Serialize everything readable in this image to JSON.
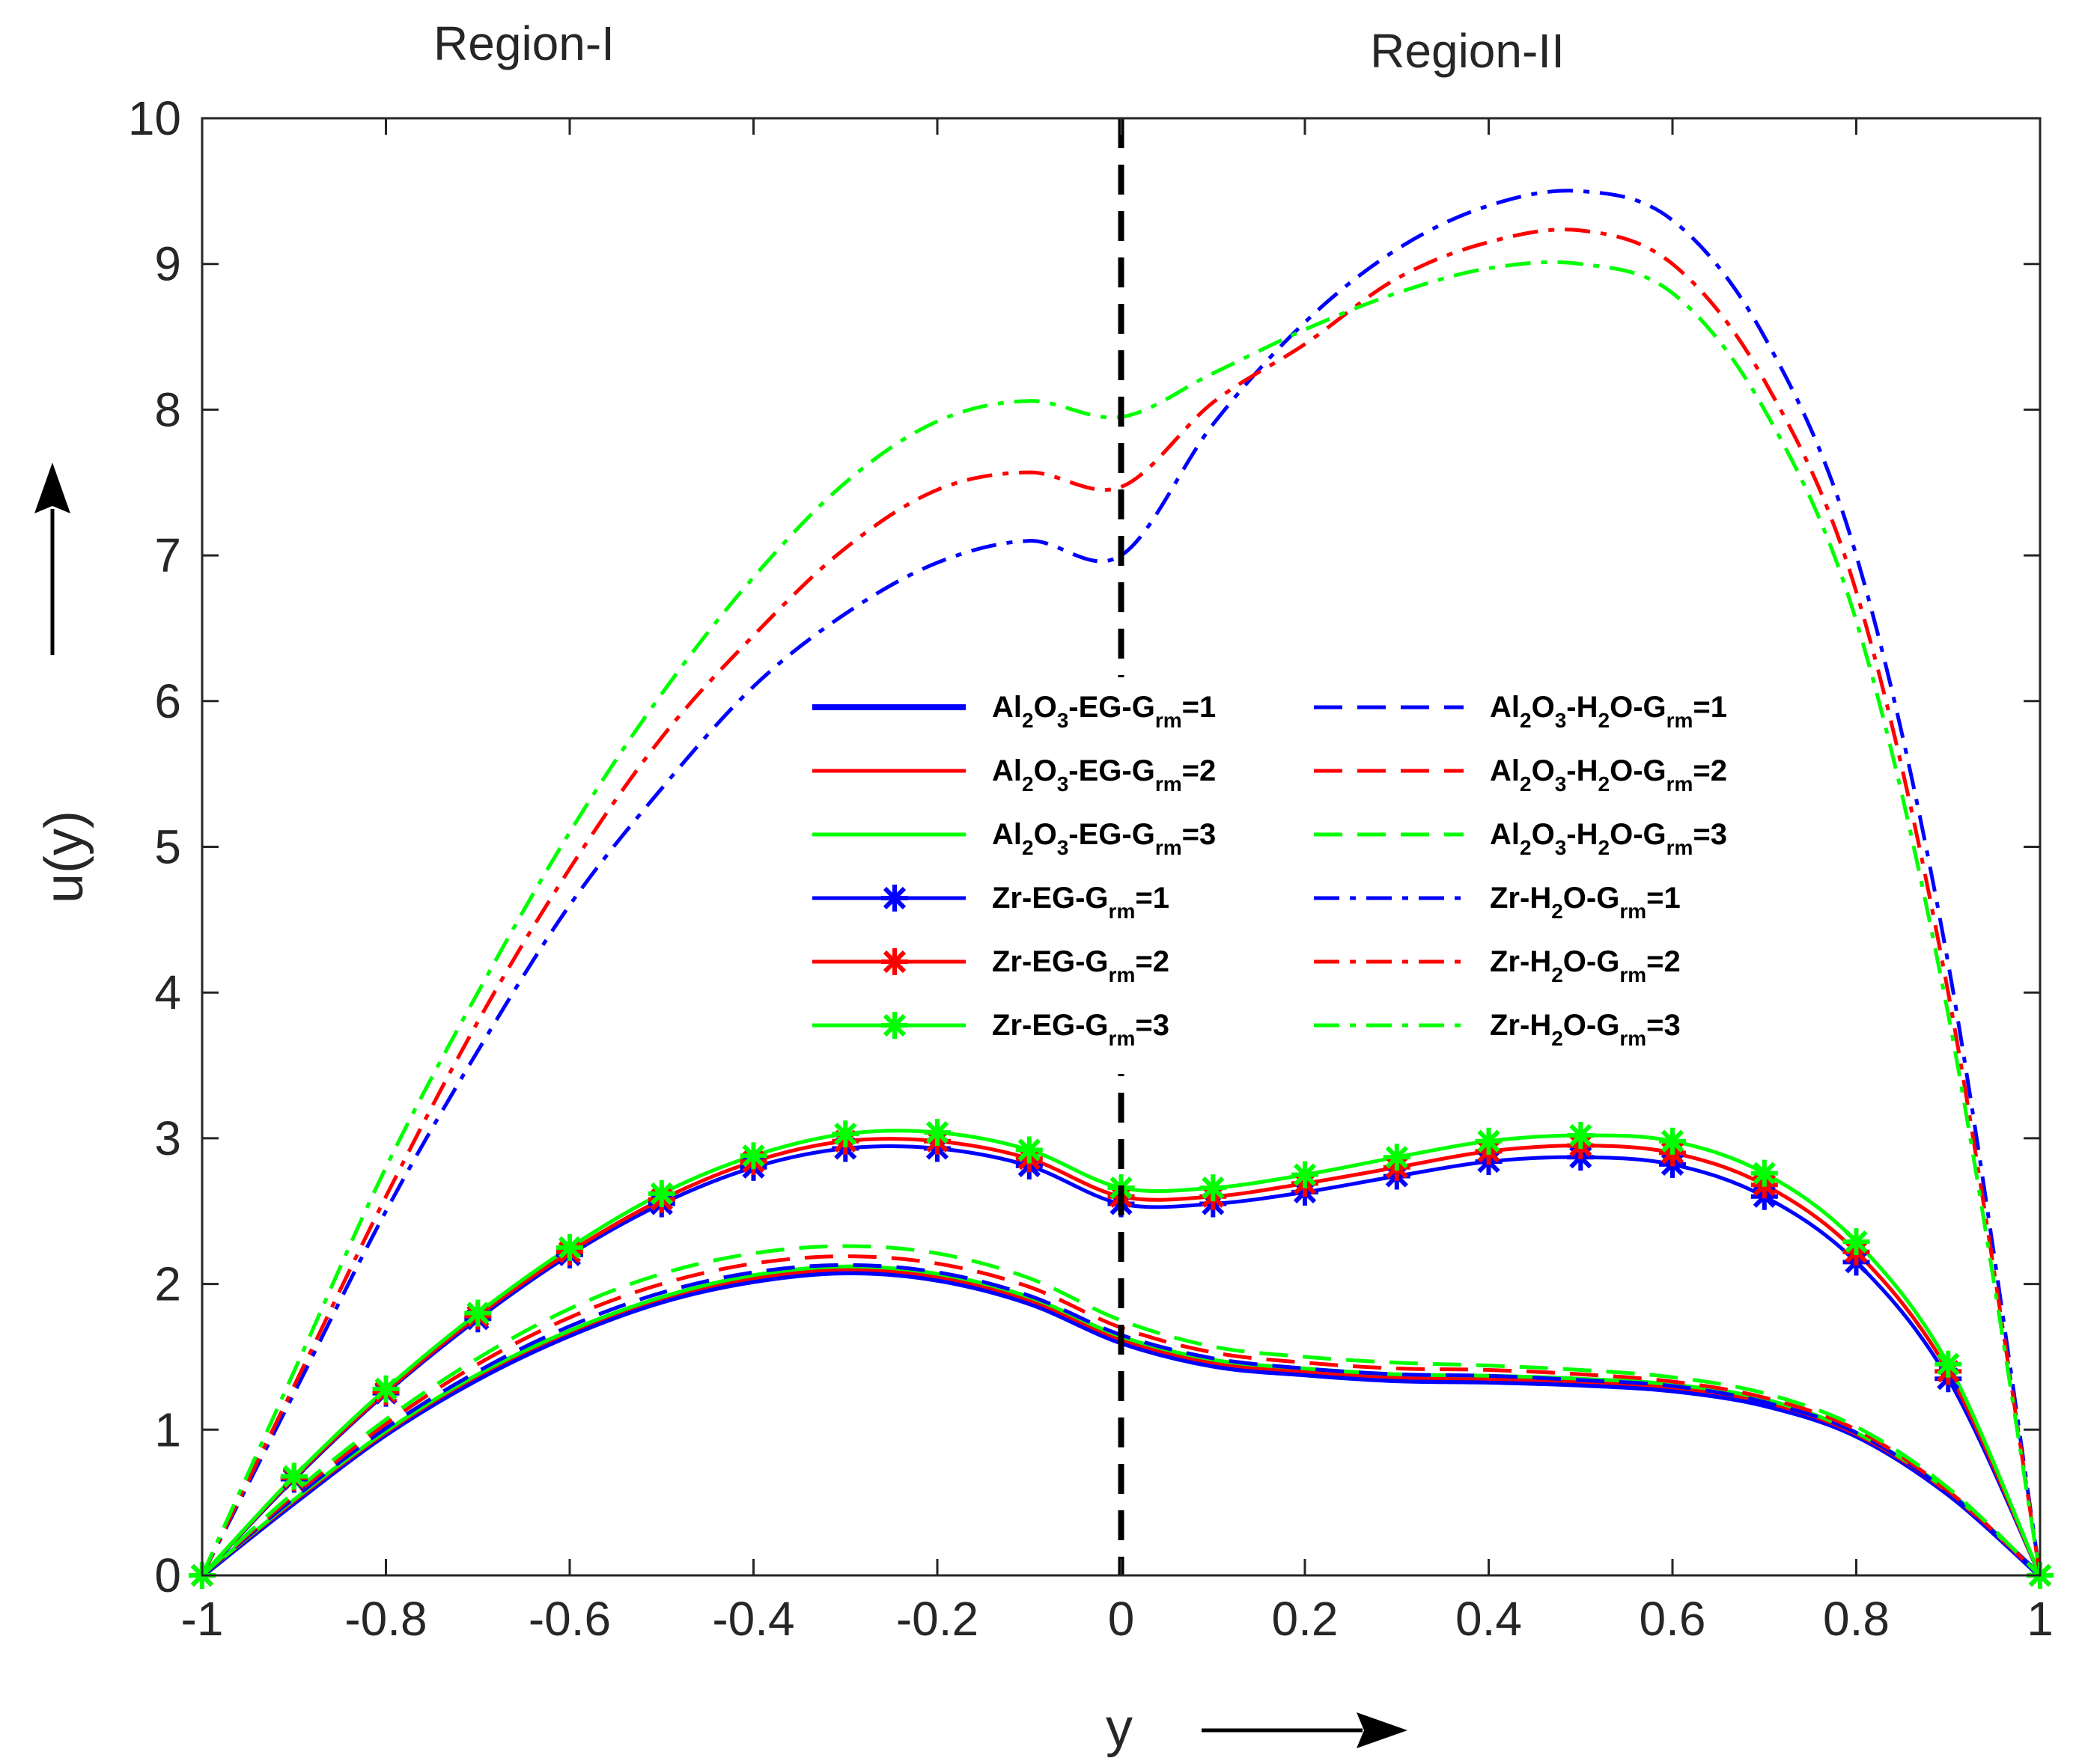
{
  "chart_data": {
    "type": "line",
    "title": "",
    "xlabel": "y",
    "ylabel": "u(y)",
    "xlim": [
      -1,
      1
    ],
    "ylim": [
      0,
      10
    ],
    "xticks": [
      "-1",
      "-0.8",
      "-0.6",
      "-0.4",
      "-0.2",
      "0",
      "0.2",
      "0.4",
      "0.6",
      "0.8",
      "1"
    ],
    "yticks": [
      "0",
      "1",
      "2",
      "3",
      "4",
      "5",
      "6",
      "7",
      "8",
      "9",
      "10"
    ],
    "regions": [
      "Region-I",
      "Region-II"
    ],
    "interface_x": 0,
    "legend_location": "center",
    "series": [
      {
        "name": "Al2O3-EG-Grm=1",
        "label": {
          "a": "Al",
          "a_sub": "2",
          "b": "O",
          "b_sub": "3",
          "c": "-EG-G",
          "c_sub": "rm",
          "d": "=1"
        },
        "color": "#0000ff",
        "style": "solid",
        "marker": "none",
        "x": [
          -1,
          -0.9,
          -0.8,
          -0.7,
          -0.6,
          -0.5,
          -0.4,
          -0.3,
          -0.2,
          -0.1,
          0,
          0.1,
          0.2,
          0.3,
          0.4,
          0.5,
          0.6,
          0.7,
          0.8,
          0.9,
          1
        ],
        "y": [
          0,
          0.5,
          0.97,
          1.35,
          1.65,
          1.88,
          2.02,
          2.08,
          2.03,
          1.87,
          1.6,
          1.44,
          1.38,
          1.34,
          1.33,
          1.31,
          1.27,
          1.17,
          0.96,
          0.56,
          0
        ]
      },
      {
        "name": "Al2O3-EG-Grm=2",
        "label": {
          "a": "Al",
          "a_sub": "2",
          "b": "O",
          "b_sub": "3",
          "c": "-EG-G",
          "c_sub": "rm",
          "d": "=2"
        },
        "color": "#ff0000",
        "style": "solid",
        "marker": "none",
        "x": [
          -1,
          -0.9,
          -0.8,
          -0.7,
          -0.6,
          -0.5,
          -0.4,
          -0.3,
          -0.2,
          -0.1,
          0,
          0.1,
          0.2,
          0.3,
          0.4,
          0.5,
          0.6,
          0.7,
          0.8,
          0.9,
          1
        ],
        "y": [
          0,
          0.51,
          0.98,
          1.37,
          1.67,
          1.9,
          2.04,
          2.1,
          2.05,
          1.89,
          1.62,
          1.46,
          1.4,
          1.36,
          1.35,
          1.33,
          1.29,
          1.19,
          0.97,
          0.57,
          0
        ]
      },
      {
        "name": "Al2O3-EG-Grm=3",
        "label": {
          "a": "Al",
          "a_sub": "2",
          "b": "O",
          "b_sub": "3",
          "c": "-EG-G",
          "c_sub": "rm",
          "d": "=3"
        },
        "color": "#00ff00",
        "style": "solid",
        "marker": "none",
        "x": [
          -1,
          -0.9,
          -0.8,
          -0.7,
          -0.6,
          -0.5,
          -0.4,
          -0.3,
          -0.2,
          -0.1,
          0,
          0.1,
          0.2,
          0.3,
          0.4,
          0.5,
          0.6,
          0.7,
          0.8,
          0.9,
          1
        ],
        "y": [
          0,
          0.52,
          0.99,
          1.38,
          1.68,
          1.91,
          2.06,
          2.12,
          2.07,
          1.91,
          1.64,
          1.48,
          1.42,
          1.38,
          1.37,
          1.35,
          1.31,
          1.21,
          0.98,
          0.58,
          0
        ]
      },
      {
        "name": "Zr-EG-Grm=1",
        "label": {
          "a": "Zr-EG-G",
          "a_sub": "",
          "b": "",
          "b_sub": "",
          "c": "",
          "c_sub": "rm",
          "d": "=1"
        },
        "color": "#0000ff",
        "style": "solid",
        "marker": "asterisk",
        "x": [
          -1,
          -0.9,
          -0.8,
          -0.7,
          -0.6,
          -0.5,
          -0.4,
          -0.3,
          -0.2,
          -0.1,
          0,
          0.1,
          0.2,
          0.3,
          0.4,
          0.5,
          0.6,
          0.7,
          0.8,
          0.9,
          1
        ],
        "y": [
          0,
          0.66,
          1.25,
          1.76,
          2.2,
          2.55,
          2.8,
          2.93,
          2.93,
          2.81,
          2.55,
          2.55,
          2.63,
          2.74,
          2.84,
          2.87,
          2.82,
          2.6,
          2.15,
          1.35,
          0
        ]
      },
      {
        "name": "Zr-EG-Grm=2",
        "label": {
          "a": "Zr-EG-G",
          "a_sub": "",
          "b": "",
          "b_sub": "",
          "c": "",
          "c_sub": "rm",
          "d": "=2"
        },
        "color": "#ff0000",
        "style": "solid",
        "marker": "asterisk",
        "x": [
          -1,
          -0.9,
          -0.8,
          -0.7,
          -0.6,
          -0.5,
          -0.4,
          -0.3,
          -0.2,
          -0.1,
          0,
          0.1,
          0.2,
          0.3,
          0.4,
          0.5,
          0.6,
          0.7,
          0.8,
          0.9,
          1
        ],
        "y": [
          0,
          0.67,
          1.26,
          1.78,
          2.22,
          2.58,
          2.84,
          2.98,
          2.98,
          2.86,
          2.6,
          2.6,
          2.69,
          2.8,
          2.91,
          2.95,
          2.9,
          2.68,
          2.22,
          1.4,
          0
        ]
      },
      {
        "name": "Zr-EG-Grm=3",
        "label": {
          "a": "Zr-EG-G",
          "a_sub": "",
          "b": "",
          "b_sub": "",
          "c": "",
          "c_sub": "rm",
          "d": "=3"
        },
        "color": "#00ff00",
        "style": "solid",
        "marker": "asterisk",
        "x": [
          -1,
          -0.9,
          -0.8,
          -0.7,
          -0.6,
          -0.5,
          -0.4,
          -0.3,
          -0.2,
          -0.1,
          0,
          0.1,
          0.2,
          0.3,
          0.4,
          0.5,
          0.6,
          0.7,
          0.8,
          0.9,
          1
        ],
        "y": [
          0,
          0.68,
          1.28,
          1.8,
          2.25,
          2.62,
          2.88,
          3.03,
          3.04,
          2.92,
          2.66,
          2.66,
          2.75,
          2.87,
          2.98,
          3.02,
          2.98,
          2.76,
          2.29,
          1.45,
          0
        ]
      },
      {
        "name": "Al2O3-H2O-Grm=1",
        "label": {
          "a": "Al",
          "a_sub": "2",
          "b": "O",
          "b_sub": "3",
          "c": "-H",
          "c_sub": "2",
          "d": "O-G",
          "d_sub": "rm",
          "e": "=1"
        },
        "color": "#0000ff",
        "style": "dashed",
        "marker": "none",
        "x": [
          -1,
          -0.9,
          -0.8,
          -0.7,
          -0.6,
          -0.5,
          -0.4,
          -0.3,
          -0.2,
          -0.1,
          0,
          0.1,
          0.2,
          0.3,
          0.4,
          0.5,
          0.6,
          0.7,
          0.8,
          0.9,
          1
        ],
        "y": [
          0,
          0.53,
          1.01,
          1.4,
          1.71,
          1.94,
          2.08,
          2.13,
          2.08,
          1.92,
          1.65,
          1.49,
          1.42,
          1.38,
          1.37,
          1.34,
          1.3,
          1.19,
          0.98,
          0.57,
          0
        ]
      },
      {
        "name": "Al2O3-H2O-Grm=2",
        "label": {
          "a": "Al",
          "a_sub": "2",
          "b": "O",
          "b_sub": "3",
          "c": "-H",
          "c_sub": "2",
          "d": "O-G",
          "d_sub": "rm",
          "e": "=2"
        },
        "color": "#ff0000",
        "style": "dashed",
        "marker": "none",
        "x": [
          -1,
          -0.9,
          -0.8,
          -0.7,
          -0.6,
          -0.5,
          -0.4,
          -0.3,
          -0.2,
          -0.1,
          0,
          0.1,
          0.2,
          0.3,
          0.4,
          0.5,
          0.6,
          0.7,
          0.8,
          0.9,
          1
        ],
        "y": [
          0,
          0.55,
          1.04,
          1.45,
          1.77,
          2.0,
          2.14,
          2.19,
          2.14,
          1.98,
          1.7,
          1.53,
          1.46,
          1.42,
          1.41,
          1.38,
          1.33,
          1.22,
          1.0,
          0.58,
          0
        ]
      },
      {
        "name": "Al2O3-H2O-Grm=3",
        "label": {
          "a": "Al",
          "a_sub": "2",
          "b": "O",
          "b_sub": "3",
          "c": "-H",
          "c_sub": "2",
          "d": "O-G",
          "d_sub": "rm",
          "e": "=3"
        },
        "color": "#00ff00",
        "style": "dashed",
        "marker": "none",
        "x": [
          -1,
          -0.9,
          -0.8,
          -0.7,
          -0.6,
          -0.5,
          -0.4,
          -0.3,
          -0.2,
          -0.1,
          0,
          0.1,
          0.2,
          0.3,
          0.4,
          0.5,
          0.6,
          0.7,
          0.8,
          0.9,
          1
        ],
        "y": [
          0,
          0.57,
          1.07,
          1.49,
          1.83,
          2.07,
          2.21,
          2.26,
          2.21,
          2.04,
          1.75,
          1.57,
          1.5,
          1.46,
          1.44,
          1.41,
          1.36,
          1.25,
          1.02,
          0.6,
          0
        ]
      },
      {
        "name": "Zr-H2O-Grm=1",
        "label": {
          "a": "Zr-H",
          "a_sub": "2",
          "b": "O-G",
          "b_sub": "rm",
          "c": "=1",
          "c_sub": "",
          "d": ""
        },
        "color": "#0000ff",
        "style": "dashdot",
        "marker": "none",
        "x": [
          -1,
          -0.9,
          -0.8,
          -0.7,
          -0.6,
          -0.5,
          -0.4,
          -0.3,
          -0.2,
          -0.1,
          0,
          0.1,
          0.2,
          0.3,
          0.4,
          0.5,
          0.6,
          0.7,
          0.8,
          0.9,
          1
        ],
        "y": [
          0,
          1.25,
          2.5,
          3.6,
          4.6,
          5.4,
          6.1,
          6.6,
          6.95,
          7.1,
          7.0,
          7.9,
          8.6,
          9.1,
          9.4,
          9.5,
          9.3,
          8.5,
          7.0,
          4.2,
          0
        ]
      },
      {
        "name": "Zr-H2O-Grm=2",
        "label": {
          "a": "Zr-H",
          "a_sub": "2",
          "b": "O-G",
          "b_sub": "rm",
          "c": "=2",
          "c_sub": "",
          "d": ""
        },
        "color": "#ff0000",
        "style": "dashdot",
        "marker": "none",
        "x": [
          -1,
          -0.9,
          -0.8,
          -0.7,
          -0.6,
          -0.5,
          -0.4,
          -0.3,
          -0.2,
          -0.1,
          0,
          0.1,
          0.2,
          0.3,
          0.4,
          0.5,
          0.6,
          0.7,
          0.8,
          0.9,
          1
        ],
        "y": [
          0,
          1.3,
          2.6,
          3.8,
          4.85,
          5.75,
          6.45,
          7.05,
          7.45,
          7.57,
          7.47,
          8.05,
          8.45,
          8.9,
          9.15,
          9.23,
          9.0,
          8.2,
          6.75,
          4.0,
          0
        ]
      },
      {
        "name": "Zr-H2O-Grm=3",
        "label": {
          "a": "Zr-H",
          "a_sub": "2",
          "b": "O-G",
          "b_sub": "rm",
          "c": "=3",
          "c_sub": "",
          "d": ""
        },
        "color": "#00ff00",
        "style": "dashdot",
        "marker": "none",
        "x": [
          -1,
          -0.9,
          -0.8,
          -0.7,
          -0.6,
          -0.5,
          -0.4,
          -0.3,
          -0.2,
          -0.1,
          0,
          0.1,
          0.2,
          0.3,
          0.4,
          0.5,
          0.6,
          0.7,
          0.8,
          0.9,
          1
        ],
        "y": [
          0,
          1.4,
          2.8,
          4.0,
          5.1,
          6.05,
          6.85,
          7.5,
          7.92,
          8.06,
          7.95,
          8.25,
          8.55,
          8.8,
          8.97,
          9.0,
          8.8,
          8.0,
          6.55,
          3.85,
          0
        ]
      }
    ]
  }
}
